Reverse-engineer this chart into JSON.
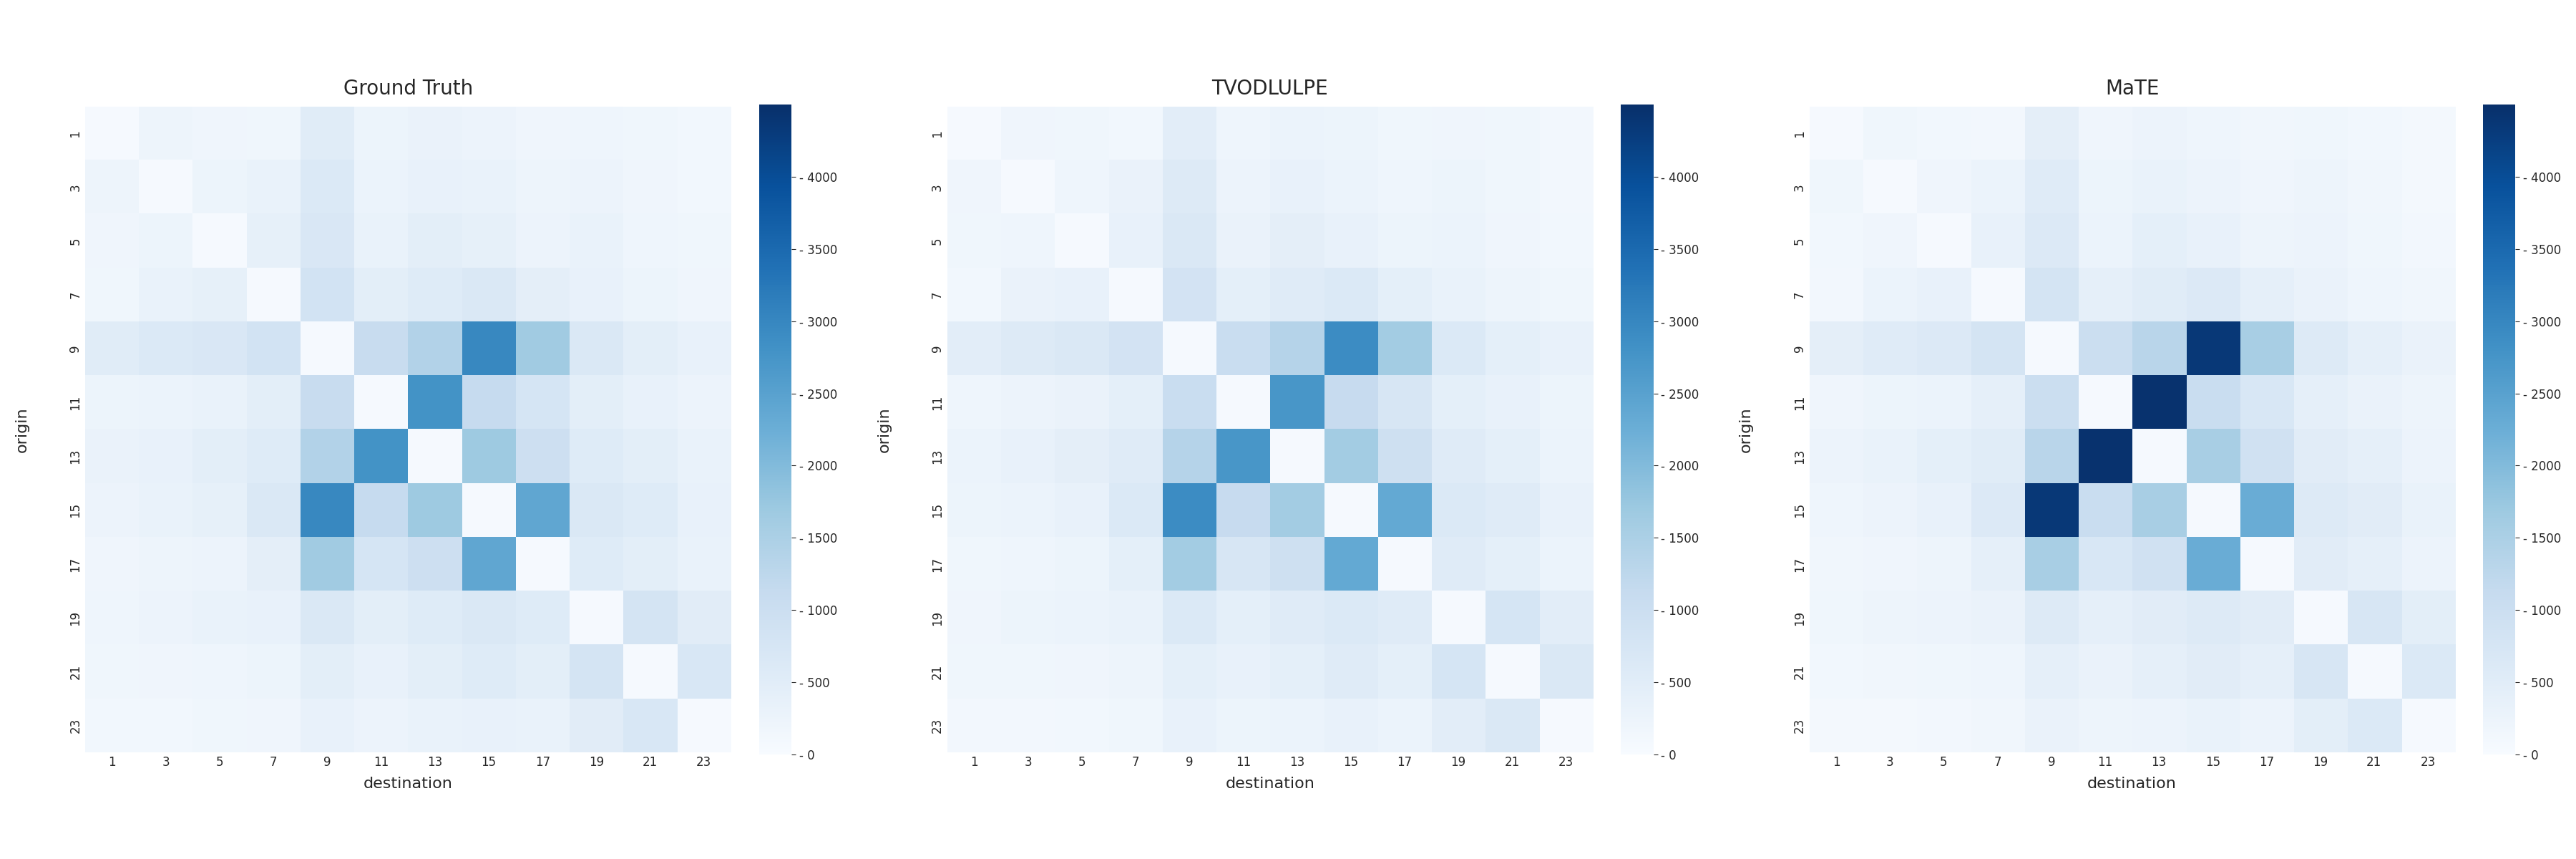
{
  "titles": [
    "Ground Truth",
    "TVODLULPE",
    "MaTE"
  ],
  "nodes": [
    1,
    3,
    5,
    7,
    9,
    11,
    13,
    15,
    17,
    19,
    21,
    23
  ],
  "xlabel": "destination",
  "ylabel": "origin",
  "vmin": 0,
  "vmax": 4500,
  "cmap": "Blues",
  "colorbar_ticks": [
    0,
    500,
    1000,
    1500,
    2000,
    2500,
    3000,
    3500,
    4000
  ],
  "colorbar_labels": [
    "- 0",
    "- 500",
    "- 1000",
    "- 1500",
    "- 2000",
    "- 2500",
    "- 3000",
    "- 3500",
    "- 4000"
  ],
  "figsize": [
    36.0,
    12.0
  ],
  "title_fontsize": 20,
  "label_fontsize": 16,
  "tick_fontsize": 12,
  "ground_truth": [
    [
      50,
      220,
      180,
      160,
      520,
      230,
      290,
      260,
      190,
      210,
      170,
      130
    ],
    [
      220,
      50,
      230,
      310,
      620,
      270,
      340,
      300,
      220,
      260,
      190,
      140
    ],
    [
      180,
      230,
      50,
      370,
      680,
      310,
      450,
      370,
      260,
      300,
      210,
      160
    ],
    [
      160,
      310,
      370,
      50,
      840,
      440,
      550,
      640,
      430,
      330,
      240,
      190
    ],
    [
      520,
      620,
      680,
      840,
      50,
      1080,
      1400,
      2980,
      1650,
      660,
      450,
      350
    ],
    [
      230,
      270,
      310,
      440,
      1080,
      50,
      2780,
      1120,
      760,
      450,
      350,
      260
    ],
    [
      290,
      340,
      450,
      550,
      1400,
      2780,
      50,
      1670,
      960,
      550,
      440,
      300
    ],
    [
      260,
      300,
      370,
      640,
      2980,
      1120,
      1670,
      50,
      2400,
      660,
      550,
      350
    ],
    [
      190,
      220,
      260,
      430,
      1650,
      760,
      960,
      2400,
      50,
      560,
      450,
      300
    ],
    [
      210,
      260,
      300,
      330,
      660,
      450,
      550,
      660,
      560,
      50,
      800,
      500
    ],
    [
      170,
      190,
      210,
      240,
      450,
      350,
      440,
      550,
      450,
      800,
      50,
      700
    ],
    [
      130,
      140,
      160,
      190,
      350,
      260,
      300,
      350,
      300,
      500,
      700,
      50
    ]
  ],
  "tvodlulpe": [
    [
      50,
      190,
      160,
      140,
      470,
      210,
      270,
      230,
      170,
      190,
      160,
      110
    ],
    [
      190,
      50,
      210,
      290,
      580,
      250,
      320,
      270,
      200,
      240,
      170,
      120
    ],
    [
      160,
      210,
      50,
      350,
      640,
      290,
      430,
      350,
      240,
      280,
      190,
      140
    ],
    [
      140,
      290,
      350,
      50,
      820,
      420,
      530,
      620,
      410,
      310,
      220,
      170
    ],
    [
      470,
      580,
      640,
      820,
      50,
      1040,
      1360,
      2910,
      1600,
      620,
      420,
      320
    ],
    [
      210,
      250,
      290,
      420,
      1040,
      50,
      2720,
      1090,
      730,
      420,
      320,
      240
    ],
    [
      270,
      320,
      430,
      530,
      1360,
      2720,
      50,
      1600,
      920,
      530,
      420,
      280
    ],
    [
      230,
      270,
      350,
      620,
      2910,
      1090,
      1600,
      50,
      2340,
      620,
      530,
      320
    ],
    [
      170,
      200,
      240,
      410,
      1600,
      730,
      920,
      2340,
      50,
      530,
      420,
      280
    ],
    [
      190,
      240,
      280,
      310,
      620,
      420,
      530,
      620,
      530,
      50,
      760,
      470
    ],
    [
      160,
      170,
      190,
      220,
      420,
      320,
      420,
      530,
      420,
      760,
      50,
      660
    ],
    [
      110,
      120,
      140,
      170,
      320,
      240,
      280,
      320,
      280,
      470,
      660,
      50
    ]
  ],
  "mate": [
    [
      50,
      170,
      140,
      120,
      430,
      190,
      250,
      210,
      150,
      170,
      140,
      90
    ],
    [
      170,
      50,
      190,
      270,
      540,
      230,
      300,
      250,
      180,
      220,
      150,
      100
    ],
    [
      140,
      190,
      50,
      330,
      600,
      270,
      410,
      330,
      220,
      260,
      170,
      120
    ],
    [
      120,
      270,
      330,
      50,
      780,
      400,
      510,
      600,
      390,
      290,
      200,
      150
    ],
    [
      430,
      540,
      600,
      780,
      50,
      1000,
      1310,
      4350,
      1540,
      580,
      390,
      290
    ],
    [
      190,
      230,
      270,
      400,
      1000,
      50,
      4450,
      1040,
      700,
      390,
      290,
      220
    ],
    [
      250,
      300,
      410,
      510,
      1310,
      4450,
      50,
      1540,
      880,
      500,
      390,
      260
    ],
    [
      210,
      250,
      330,
      600,
      4350,
      1040,
      1540,
      50,
      2280,
      580,
      500,
      300
    ],
    [
      150,
      180,
      220,
      390,
      1540,
      700,
      880,
      2280,
      50,
      500,
      390,
      260
    ],
    [
      170,
      220,
      260,
      290,
      580,
      390,
      500,
      580,
      500,
      50,
      730,
      440
    ],
    [
      140,
      150,
      170,
      200,
      390,
      290,
      390,
      500,
      390,
      730,
      50,
      630
    ],
    [
      90,
      100,
      120,
      150,
      290,
      220,
      260,
      300,
      260,
      440,
      630,
      50
    ]
  ]
}
